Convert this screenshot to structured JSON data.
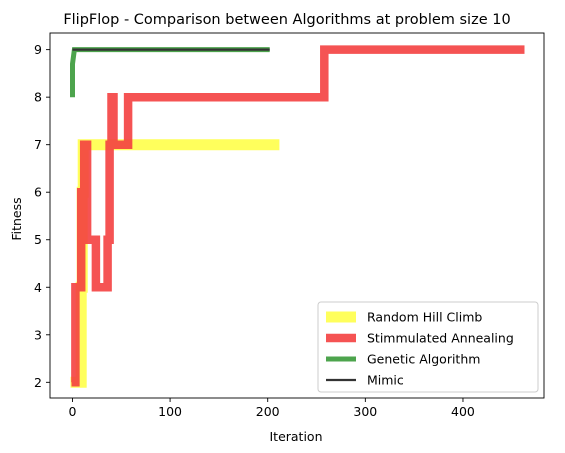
{
  "chart_data": {
    "type": "line",
    "title": "FlipFlop - Comparison between Algorithms at problem size 10",
    "xlabel": "Iteration",
    "ylabel": "Fitness",
    "xlim": [
      -23,
      483
    ],
    "ylim": [
      1.67,
      9.35
    ],
    "xticks": [
      0,
      100,
      200,
      300,
      400
    ],
    "yticks": [
      2,
      3,
      4,
      5,
      6,
      7,
      8,
      9
    ],
    "grid": false,
    "legend_position": "lower-right",
    "series": [
      {
        "name": "Random Hill Climb",
        "color": "#ffff33",
        "points": [
          [
            -2,
            2
          ],
          [
            9,
            2
          ],
          [
            9,
            4
          ],
          [
            10,
            4
          ],
          [
            10,
            6
          ],
          [
            11,
            6
          ],
          [
            11,
            7
          ],
          [
            212,
            7
          ]
        ]
      },
      {
        "name": "Stimmulated Annealing",
        "color": "#f44040",
        "points": [
          [
            -1,
            2
          ],
          [
            3,
            2
          ],
          [
            3,
            4
          ],
          [
            9,
            4
          ],
          [
            9,
            6
          ],
          [
            12,
            6
          ],
          [
            12,
            7
          ],
          [
            15,
            7
          ],
          [
            15,
            5
          ],
          [
            21,
            5
          ],
          [
            24,
            5
          ],
          [
            24,
            4
          ],
          [
            36,
            4
          ],
          [
            36,
            5
          ],
          [
            38,
            5
          ],
          [
            38,
            7
          ],
          [
            40,
            7
          ],
          [
            40,
            8
          ],
          [
            42,
            8
          ],
          [
            42,
            7
          ],
          [
            57,
            7
          ],
          [
            57,
            8
          ],
          [
            258,
            8
          ],
          [
            258,
            9
          ],
          [
            463,
            9
          ]
        ]
      },
      {
        "name": "Genetic Algorithm",
        "color": "#3a9a3a",
        "points": [
          [
            0,
            8
          ],
          [
            0,
            8.7
          ],
          [
            2,
            9
          ],
          [
            202,
            9
          ]
        ]
      },
      {
        "name": "Mimic",
        "color": "#333333",
        "points": [
          [
            0,
            9
          ],
          [
            202,
            9
          ]
        ]
      }
    ]
  }
}
